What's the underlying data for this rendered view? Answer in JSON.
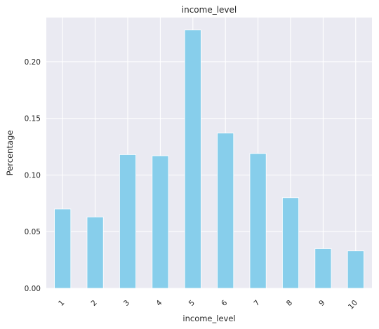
{
  "chart_data": {
    "type": "bar",
    "title": "income_level",
    "xlabel": "income_level",
    "ylabel": "Percentage",
    "categories": [
      "1",
      "2",
      "3",
      "4",
      "5",
      "6",
      "7",
      "8",
      "9",
      "10"
    ],
    "values": [
      0.07,
      0.063,
      0.118,
      0.117,
      0.228,
      0.137,
      0.119,
      0.08,
      0.035,
      0.033
    ],
    "ylim": [
      0,
      0.239
    ],
    "yticks": [
      "0.00",
      "0.05",
      "0.10",
      "0.15",
      "0.20"
    ],
    "ytick_values": [
      0,
      0.05,
      0.1,
      0.15,
      0.2
    ],
    "grid": true,
    "legend": "none",
    "colors": {
      "bar": "#87ceeb",
      "plot_background": "#eaeaf2",
      "grid": "#ffffff",
      "text": "#262626"
    }
  }
}
